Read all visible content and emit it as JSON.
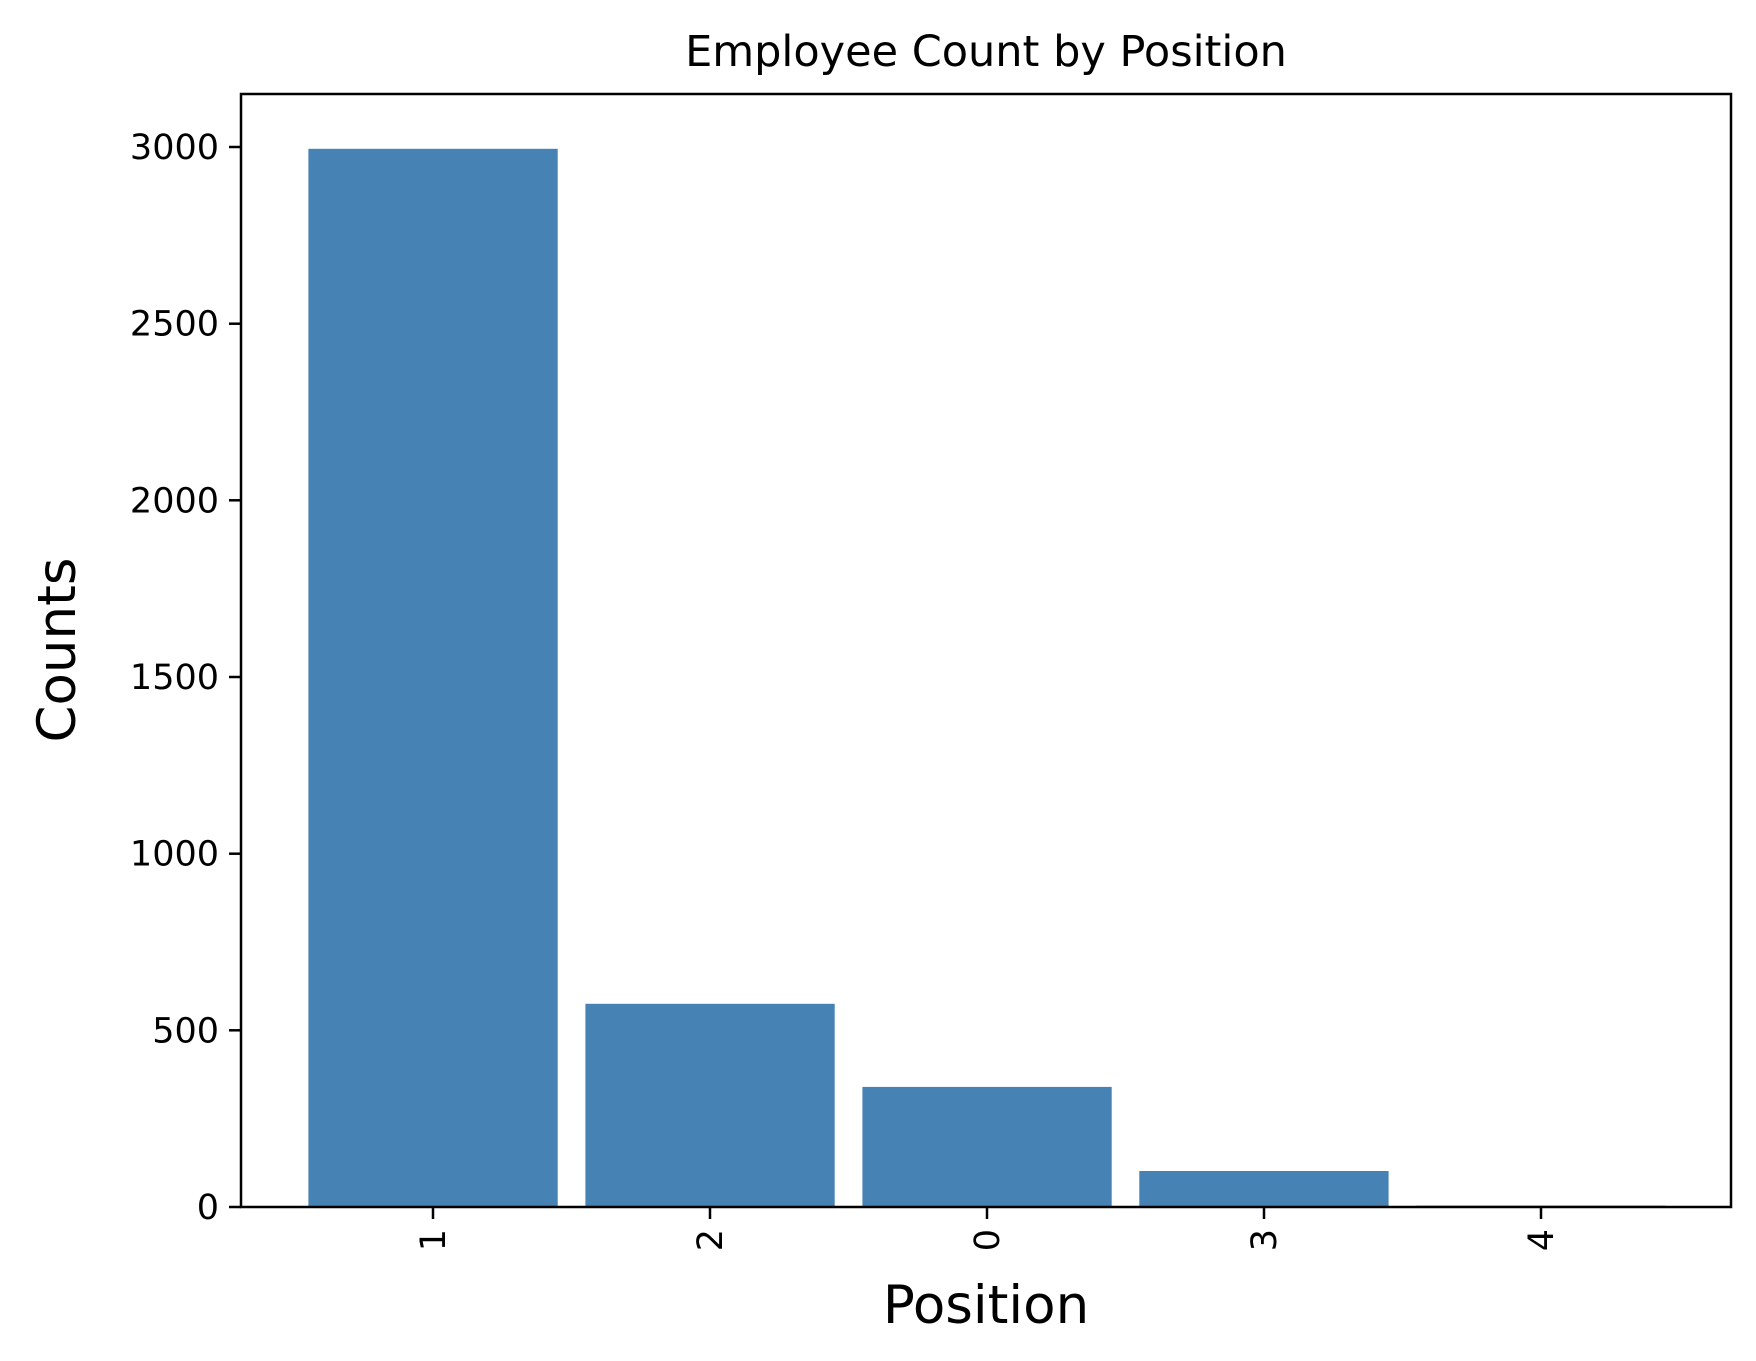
{
  "chart_data": {
    "type": "bar",
    "title": "Employee Count by Position",
    "xlabel": "Position",
    "ylabel": "Counts",
    "categories": [
      "1",
      "2",
      "0",
      "3",
      "4"
    ],
    "values": [
      2995,
      575,
      340,
      102,
      4
    ],
    "ylim": [
      0,
      3150
    ],
    "yticks": [
      0,
      500,
      1000,
      1500,
      2000,
      2500,
      3000
    ],
    "x_tick_rotation_deg": 90,
    "bar_color": "#4682b4",
    "grid": false,
    "legend": "none"
  }
}
